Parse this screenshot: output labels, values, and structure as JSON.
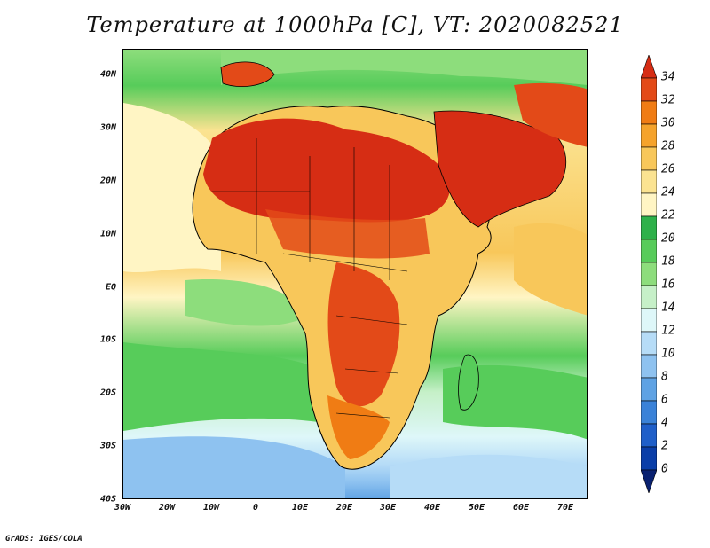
{
  "title": "Temperature at 1000hPa [C], VT: 2020082521",
  "footer": "GrADS: IGES/COLA",
  "y_axis": [
    "40N",
    "30N",
    "20N",
    "10N",
    "EQ",
    "10S",
    "20S",
    "30S",
    "40S"
  ],
  "x_axis": [
    "30W",
    "20W",
    "10W",
    "0",
    "10E",
    "20E",
    "30E",
    "40E",
    "50E",
    "60E",
    "70E"
  ],
  "colorbar": {
    "labels": [
      "34",
      "32",
      "30",
      "28",
      "26",
      "24",
      "22",
      "20",
      "18",
      "16",
      "14",
      "12",
      "10",
      "8",
      "6",
      "4",
      "2",
      "0"
    ],
    "colors": [
      "#d62d14",
      "#e34a18",
      "#f07c14",
      "#f5a32c",
      "#f8c75a",
      "#fbe391",
      "#fff5c4",
      "#2eb14a",
      "#57cc5a",
      "#8ddd7c",
      "#c6f0c8",
      "#def7f9",
      "#b6dcf7",
      "#8ec2f0",
      "#5ea2e4",
      "#3a82d8",
      "#1f5fc9",
      "#0a3ea8",
      "#0a2170"
    ]
  }
}
